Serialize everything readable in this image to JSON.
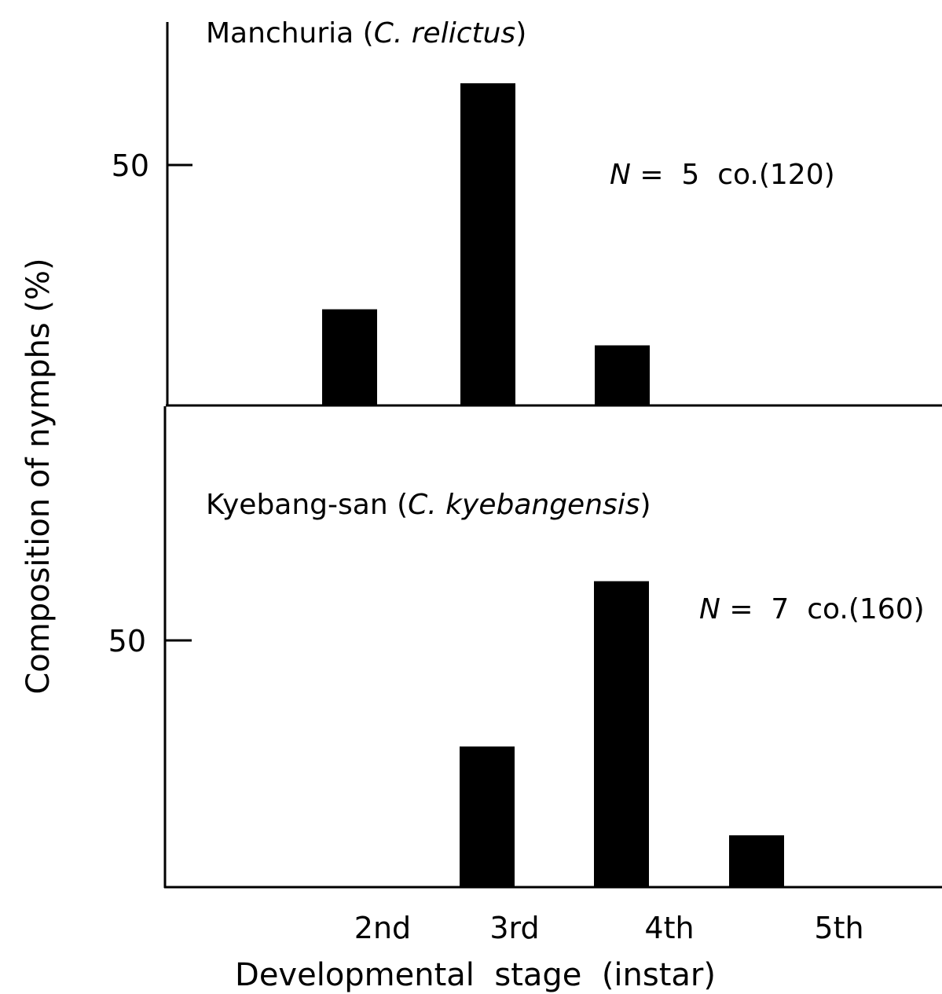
{
  "chart_data": {
    "type": "bar",
    "xlabel": "Developmental  stage  (instar)",
    "ylabel": "Composition of nymphs (%)",
    "categories": [
      "2nd",
      "3rd",
      "4th",
      "5th"
    ],
    "panels": [
      {
        "title_prefix": "Manchuria (",
        "title_species": "C. relictus",
        "title_suffix": ")",
        "n_symbol": "N",
        "n_text": " =  5  co.(120)",
        "y_tick": "50",
        "ylim": [
          0,
          100
        ],
        "values": [
          20,
          67,
          12.5,
          0
        ]
      },
      {
        "title_prefix": "Kyebang-san (",
        "title_species": "C. kyebangensis",
        "title_suffix": ")",
        "n_symbol": "N",
        "n_text": " =  7  co.(160)",
        "y_tick": "50",
        "ylim": [
          0,
          100
        ],
        "values": [
          0,
          28.5,
          62,
          10.5
        ]
      }
    ]
  }
}
